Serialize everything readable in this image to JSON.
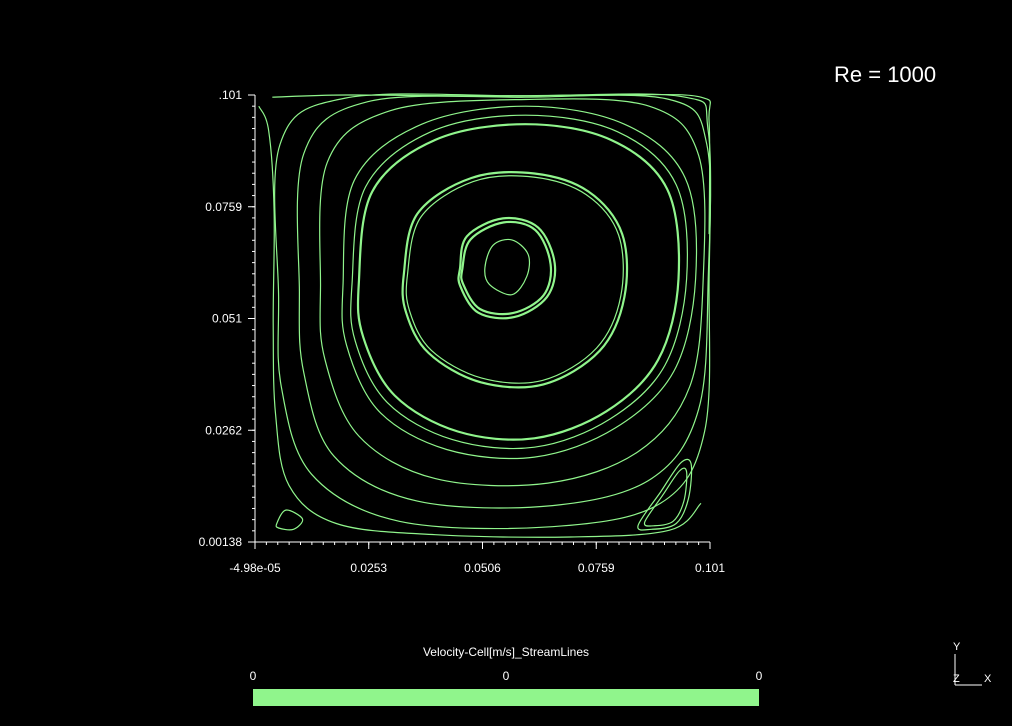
{
  "annotation": {
    "text": "Re = 1000"
  },
  "colors": {
    "background": "#000000",
    "streamline": "#90f58c",
    "axis": "#ffffff",
    "text": "#ffffff"
  },
  "colorbar": {
    "title": "Velocity-Cell[m/s]_StreamLines",
    "ticks": [
      "0",
      "0",
      "0"
    ],
    "color": "#90f58c"
  },
  "orientation_triad": {
    "y_label": "Y",
    "z_label": "Z",
    "x_label": "X"
  },
  "chart_data": {
    "type": "line",
    "plot_kind": "streamlines",
    "title": "",
    "xlabel": "",
    "ylabel": "",
    "xlim": [
      -4.98e-05,
      0.101
    ],
    "ylim": [
      0.00138,
      0.101
    ],
    "x_tick_labels": [
      "-4.98e-05",
      "0.0253",
      "0.0506",
      "0.0759",
      "0.101"
    ],
    "y_tick_labels": [
      ".101",
      "0.0759",
      "0.051",
      "0.0262",
      "0.00138"
    ],
    "grid": false,
    "primary_vortex_center": [
      0.057,
      0.0625
    ],
    "series": [
      {
        "kind": "closed",
        "points": [
          [
            0.051,
            0.0625
          ],
          [
            0.0528,
            0.0675
          ],
          [
            0.057,
            0.0687
          ],
          [
            0.0606,
            0.0655
          ],
          [
            0.0603,
            0.0605
          ],
          [
            0.057,
            0.0565
          ],
          [
            0.052,
            0.0588
          ],
          [
            0.051,
            0.0625
          ]
        ]
      },
      {
        "kind": "closed",
        "points": [
          [
            0.0455,
            0.0625
          ],
          [
            0.047,
            0.0695
          ],
          [
            0.055,
            0.0735
          ],
          [
            0.0628,
            0.0715
          ],
          [
            0.0665,
            0.0635
          ],
          [
            0.0648,
            0.056
          ],
          [
            0.0575,
            0.0515
          ],
          [
            0.0495,
            0.0525
          ],
          [
            0.0455,
            0.0585
          ],
          [
            0.0455,
            0.0625
          ]
        ]
      },
      {
        "kind": "closed",
        "points": [
          [
            0.046,
            0.0622
          ],
          [
            0.0478,
            0.0688
          ],
          [
            0.0552,
            0.0726
          ],
          [
            0.0622,
            0.0709
          ],
          [
            0.0656,
            0.0633
          ],
          [
            0.064,
            0.0563
          ],
          [
            0.0572,
            0.0524
          ],
          [
            0.0499,
            0.0533
          ],
          [
            0.0462,
            0.0588
          ],
          [
            0.046,
            0.0622
          ]
        ]
      },
      {
        "kind": "closed",
        "points": [
          [
            0.033,
            0.061
          ],
          [
            0.036,
            0.0745
          ],
          [
            0.048,
            0.0825
          ],
          [
            0.062,
            0.0835
          ],
          [
            0.074,
            0.0795
          ],
          [
            0.0815,
            0.07
          ],
          [
            0.082,
            0.056
          ],
          [
            0.0765,
            0.044
          ],
          [
            0.064,
            0.0365
          ],
          [
            0.05,
            0.037
          ],
          [
            0.0385,
            0.0435
          ],
          [
            0.0335,
            0.0525
          ],
          [
            0.033,
            0.061
          ]
        ]
      },
      {
        "kind": "closed",
        "points": [
          [
            0.0338,
            0.0608
          ],
          [
            0.0368,
            0.0738
          ],
          [
            0.0484,
            0.0817
          ],
          [
            0.0619,
            0.0827
          ],
          [
            0.0735,
            0.0788
          ],
          [
            0.0807,
            0.0698
          ],
          [
            0.0812,
            0.0562
          ],
          [
            0.0758,
            0.0446
          ],
          [
            0.0638,
            0.0374
          ],
          [
            0.0503,
            0.0379
          ],
          [
            0.0391,
            0.0441
          ],
          [
            0.0343,
            0.0528
          ],
          [
            0.0338,
            0.0608
          ]
        ]
      },
      {
        "kind": "closed",
        "points": [
          [
            0.023,
            0.059
          ],
          [
            0.026,
            0.0795
          ],
          [
            0.04,
            0.091
          ],
          [
            0.06,
            0.0945
          ],
          [
            0.079,
            0.091
          ],
          [
            0.0915,
            0.08
          ],
          [
            0.094,
            0.06
          ],
          [
            0.0895,
            0.042
          ],
          [
            0.078,
            0.0305
          ],
          [
            0.062,
            0.0245
          ],
          [
            0.045,
            0.026
          ],
          [
            0.031,
            0.034
          ],
          [
            0.024,
            0.047
          ],
          [
            0.023,
            0.059
          ]
        ]
      },
      {
        "kind": "closed",
        "points": [
          [
            0.0215,
            0.0588
          ],
          [
            0.0245,
            0.0805
          ],
          [
            0.039,
            0.0928
          ],
          [
            0.06,
            0.0965
          ],
          [
            0.0805,
            0.0928
          ],
          [
            0.0935,
            0.081
          ],
          [
            0.0958,
            0.06
          ],
          [
            0.091,
            0.0408
          ],
          [
            0.0788,
            0.0288
          ],
          [
            0.062,
            0.0225
          ],
          [
            0.0438,
            0.0242
          ],
          [
            0.0293,
            0.0325
          ],
          [
            0.0222,
            0.0462
          ],
          [
            0.0215,
            0.0588
          ]
        ]
      },
      {
        "kind": "closed",
        "points": [
          [
            0.0195,
            0.0585
          ],
          [
            0.022,
            0.082
          ],
          [
            0.037,
            0.0945
          ],
          [
            0.06,
            0.0985
          ],
          [
            0.082,
            0.0945
          ],
          [
            0.0955,
            0.0825
          ],
          [
            0.0978,
            0.06
          ],
          [
            0.093,
            0.0395
          ],
          [
            0.08,
            0.0268
          ],
          [
            0.062,
            0.0203
          ],
          [
            0.0425,
            0.022
          ],
          [
            0.0275,
            0.0305
          ],
          [
            0.0203,
            0.0452
          ],
          [
            0.0195,
            0.0585
          ]
        ]
      },
      {
        "kind": "closed",
        "points": [
          [
            0.0145,
            0.058
          ],
          [
            0.016,
            0.086
          ],
          [
            0.03,
            0.0975
          ],
          [
            0.06,
            0.1
          ],
          [
            0.0875,
            0.0985
          ],
          [
            0.0985,
            0.0875
          ],
          [
            0.0995,
            0.06
          ],
          [
            0.0965,
            0.036
          ],
          [
            0.085,
            0.0215
          ],
          [
            0.065,
            0.0145
          ],
          [
            0.04,
            0.0155
          ],
          [
            0.023,
            0.025
          ],
          [
            0.0155,
            0.042
          ],
          [
            0.0145,
            0.058
          ]
        ]
      },
      {
        "kind": "closed",
        "points": [
          [
            0.0098,
            0.057
          ],
          [
            0.0108,
            0.088
          ],
          [
            0.025,
            0.0995
          ],
          [
            0.06,
            0.1005
          ],
          [
            0.092,
            0.1
          ],
          [
            0.1003,
            0.09
          ],
          [
            0.1006,
            0.06
          ],
          [
            0.0985,
            0.031
          ],
          [
            0.088,
            0.0155
          ],
          [
            0.066,
            0.0095
          ],
          [
            0.036,
            0.0105
          ],
          [
            0.0175,
            0.0205
          ],
          [
            0.0108,
            0.039
          ],
          [
            0.0098,
            0.057
          ]
        ]
      },
      {
        "kind": "closed",
        "points": [
          [
            0.0052,
            0.056
          ],
          [
            0.0055,
            0.09
          ],
          [
            0.02,
            0.1003
          ],
          [
            0.06,
            0.1008
          ],
          [
            0.095,
            0.1006
          ],
          [
            0.1006,
            0.093
          ],
          [
            0.1008,
            0.06
          ],
          [
            0.0998,
            0.026
          ],
          [
            0.09,
            0.01
          ],
          [
            0.066,
            0.0048
          ],
          [
            0.032,
            0.006
          ],
          [
            0.0125,
            0.0165
          ],
          [
            0.0058,
            0.036
          ],
          [
            0.0052,
            0.056
          ]
        ]
      },
      {
        "kind": "open",
        "points": [
          [
            0.0008,
            0.0985
          ],
          [
            0.003,
            0.093
          ],
          [
            0.0042,
            0.075
          ],
          [
            0.004,
            0.05
          ],
          [
            0.0045,
            0.03
          ],
          [
            0.0075,
            0.014
          ],
          [
            0.018,
            0.0055
          ],
          [
            0.04,
            0.003
          ],
          [
            0.07,
            0.0025
          ],
          [
            0.092,
            0.004
          ],
          [
            0.099,
            0.01
          ]
        ]
      },
      {
        "kind": "open",
        "points": [
          [
            0.0038,
            0.1005
          ],
          [
            0.02,
            0.101
          ],
          [
            0.05,
            0.1008
          ],
          [
            0.08,
            0.101
          ],
          [
            0.099,
            0.1005
          ],
          [
            0.1008,
            0.095
          ],
          [
            0.1008,
            0.07
          ]
        ]
      },
      {
        "kind": "closed",
        "points": [
          [
            0.0048,
            0.0055
          ],
          [
            0.0068,
            0.0085
          ],
          [
            0.0105,
            0.0065
          ],
          [
            0.0085,
            0.0042
          ],
          [
            0.0052,
            0.0045
          ],
          [
            0.0048,
            0.0055
          ]
        ]
      },
      {
        "kind": "closed",
        "points": [
          [
            0.085,
            0.005
          ],
          [
            0.09,
            0.0125
          ],
          [
            0.0945,
            0.019
          ],
          [
            0.0968,
            0.0188
          ],
          [
            0.0962,
            0.011
          ],
          [
            0.0935,
            0.0055
          ],
          [
            0.088,
            0.0042
          ],
          [
            0.085,
            0.005
          ]
        ]
      },
      {
        "kind": "closed",
        "points": [
          [
            0.0865,
            0.0058
          ],
          [
            0.0905,
            0.0118
          ],
          [
            0.0942,
            0.0172
          ],
          [
            0.0958,
            0.017
          ],
          [
            0.0952,
            0.0105
          ],
          [
            0.0928,
            0.006
          ],
          [
            0.0885,
            0.005
          ],
          [
            0.0865,
            0.0058
          ]
        ]
      }
    ]
  }
}
